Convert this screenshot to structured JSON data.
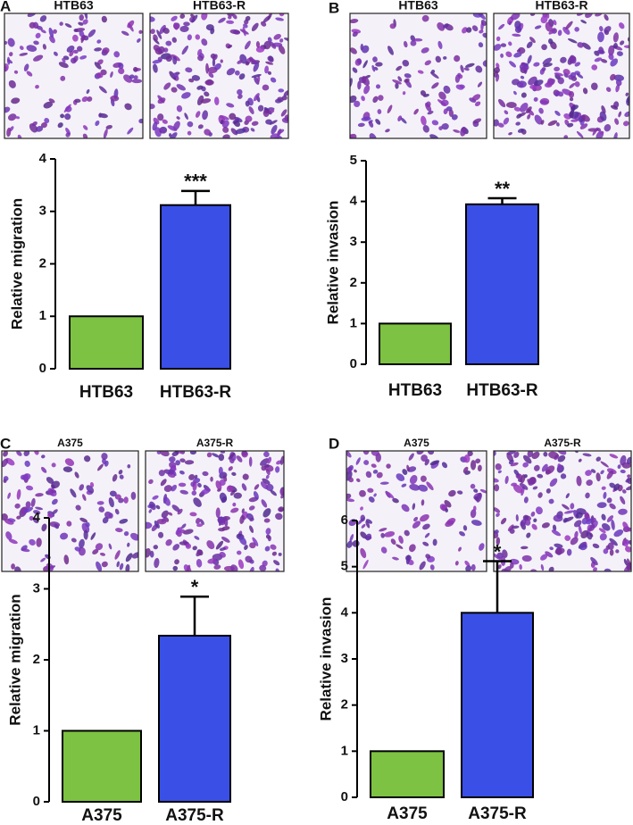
{
  "chart_data": [
    {
      "type": "bar",
      "panel": "A",
      "image_labels": [
        "HTB63",
        "HTB63-R"
      ],
      "y_label": "Relative migration",
      "categories": [
        "HTB63",
        "HTB63-R"
      ],
      "values": [
        1,
        3.12
      ],
      "errors": [
        null,
        0.27
      ],
      "annotations": [
        null,
        "***"
      ],
      "colors": [
        "#7dc242",
        "#3a4fe6"
      ],
      "ylim": [
        0,
        4
      ],
      "yticks": [
        0,
        1,
        2,
        3,
        4
      ]
    },
    {
      "type": "bar",
      "panel": "B",
      "image_labels": [
        "HTB63",
        "HTB63-R"
      ],
      "y_label": "Relative invasion",
      "categories": [
        "HTB63",
        "HTB63-R"
      ],
      "values": [
        1,
        3.93
      ],
      "errors": [
        null,
        0.15
      ],
      "annotations": [
        null,
        "**"
      ],
      "colors": [
        "#7dc242",
        "#3a4fe6"
      ],
      "ylim": [
        0,
        5
      ],
      "yticks": [
        0,
        1,
        2,
        3,
        4,
        5
      ]
    },
    {
      "type": "bar",
      "panel": "C",
      "image_labels": [
        "A375",
        "A375-R"
      ],
      "y_label": "Relative migration",
      "categories": [
        "A375",
        "A375-R"
      ],
      "values": [
        1,
        2.34
      ],
      "errors": [
        null,
        0.55
      ],
      "annotations": [
        null,
        "*"
      ],
      "colors": [
        "#7dc242",
        "#3a4fe6"
      ],
      "ylim": [
        0,
        4
      ],
      "yticks": [
        0,
        1,
        2,
        3,
        4
      ]
    },
    {
      "type": "bar",
      "panel": "D",
      "image_labels": [
        "A375",
        "A375-R"
      ],
      "y_label": "Relative invasion",
      "categories": [
        "A375",
        "A375-R"
      ],
      "values": [
        1,
        4.0
      ],
      "errors": [
        null,
        1.12
      ],
      "annotations": [
        null,
        "*"
      ],
      "colors": [
        "#7dc242",
        "#3a4fe6"
      ],
      "ylim": [
        0,
        6
      ],
      "yticks": [
        0,
        1,
        2,
        3,
        4,
        5,
        6
      ]
    }
  ]
}
